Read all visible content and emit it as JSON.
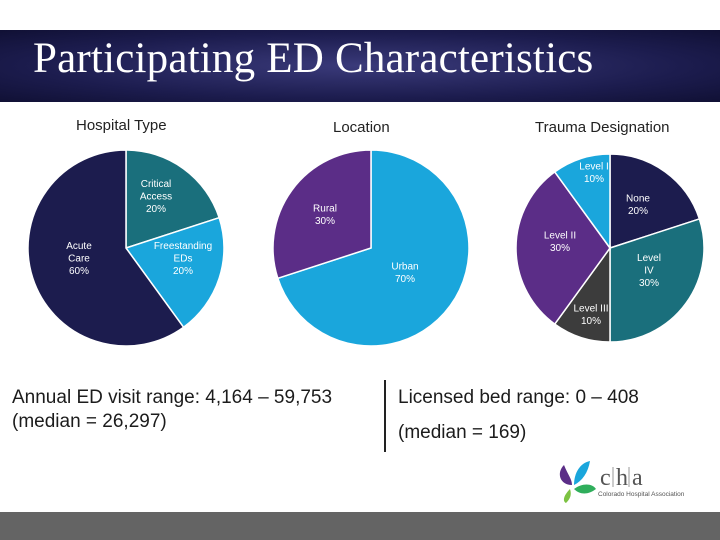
{
  "slide": {
    "title": "Participating ED Characteristics"
  },
  "stats": {
    "left_line1": "Annual ED visit range: 4,164 – 59,753",
    "left_line2": "(median = 26,297)",
    "right_line1": "Licensed bed range: 0 – 408",
    "right_line2": "(median = 169)"
  },
  "logo": {
    "c": "c",
    "h": "h",
    "a": "a",
    "text": "Colorado Hospital Association"
  },
  "colors": {
    "navy": "#1c1c4e",
    "teal": "#1a6f7c",
    "sky": "#1aa6dc",
    "purple": "#5b2d87",
    "gray": "#3c3c3c",
    "title_bg": "#1c1c4e"
  },
  "chart_data": [
    {
      "type": "pie",
      "title": "Hospital Type",
      "slices": [
        {
          "label": "Critical Access",
          "pct_text": "20%",
          "value": 20,
          "color": "#1a6f7c"
        },
        {
          "label": "Freestanding EDs",
          "pct_text": "20%",
          "value": 20,
          "color": "#1aa6dc"
        },
        {
          "label": "Acute Care",
          "pct_text": "60%",
          "value": 60,
          "color": "#1c1c4e"
        }
      ]
    },
    {
      "type": "pie",
      "title": "Location",
      "slices": [
        {
          "label": "Urban",
          "pct_text": "70%",
          "value": 70,
          "color": "#1aa6dc"
        },
        {
          "label": "Rural",
          "pct_text": "30%",
          "value": 30,
          "color": "#5b2d87"
        }
      ]
    },
    {
      "type": "pie",
      "title": "Trauma Designation",
      "slices": [
        {
          "label": "None",
          "pct_text": "20%",
          "value": 20,
          "color": "#1c1c4e"
        },
        {
          "label": "Level IV",
          "pct_text": "30%",
          "value": 30,
          "color": "#1a6f7c"
        },
        {
          "label": "Level III",
          "pct_text": "10%",
          "value": 10,
          "color": "#3c3c3c"
        },
        {
          "label": "Level II",
          "pct_text": "30%",
          "value": 30,
          "color": "#5b2d87"
        },
        {
          "label": "Level I",
          "pct_text": "10%",
          "value": 10,
          "color": "#1aa6dc"
        }
      ]
    }
  ]
}
